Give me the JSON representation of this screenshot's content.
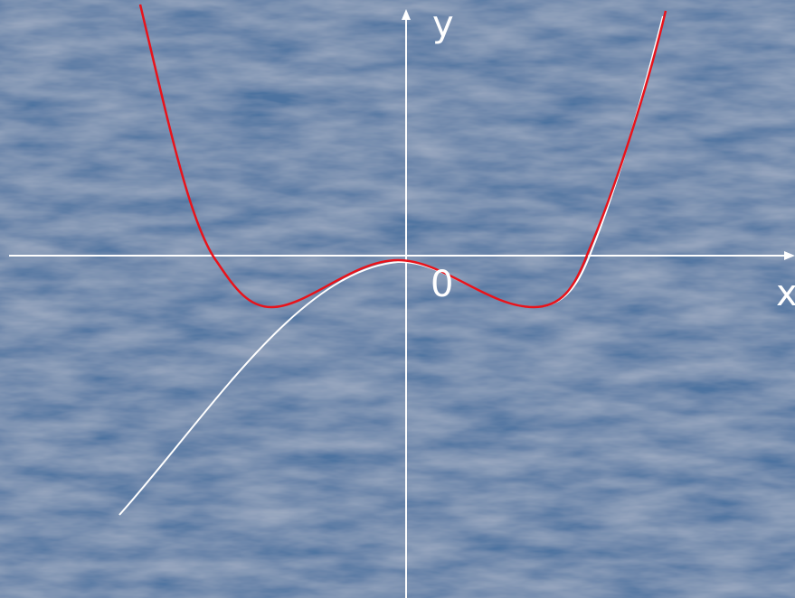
{
  "axes": {
    "y_label": "y",
    "x_label": "x",
    "origin_label": "0"
  }
}
